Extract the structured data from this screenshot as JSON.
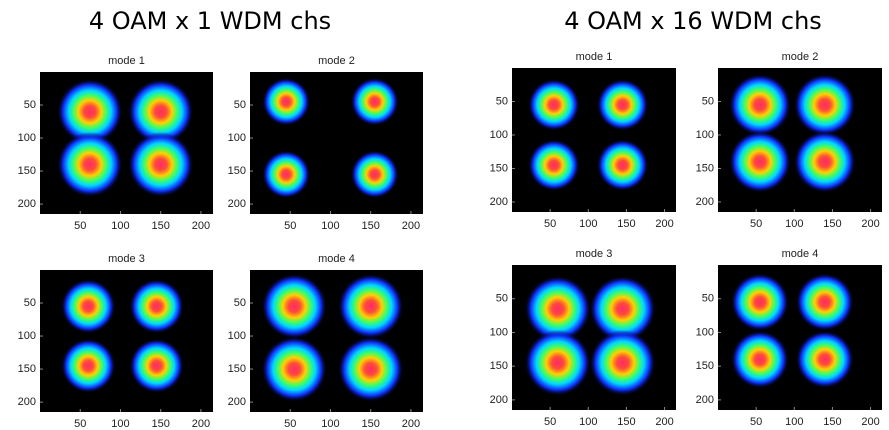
{
  "titles": [
    "4 OAM x 1 WDM chs",
    "4 OAM x 16 WDM chs"
  ],
  "chart_data": [
    {
      "type": "heatmap",
      "title": "mode 1",
      "x": [
        62,
        150,
        62,
        150
      ],
      "values": [
        60,
        60,
        140,
        140
      ],
      "sizes": [
        30,
        30,
        30,
        30
      ],
      "xlim": [
        0,
        215
      ],
      "ylim": [
        215,
        0
      ],
      "xticks": [
        50,
        100,
        150,
        200
      ],
      "yticks": [
        50,
        100,
        150,
        200
      ]
    },
    {
      "type": "heatmap",
      "title": "mode 2",
      "x": [
        45,
        155,
        45,
        155
      ],
      "values": [
        45,
        45,
        155,
        155
      ],
      "sizes": [
        22,
        22,
        22,
        22
      ],
      "xlim": [
        0,
        215
      ],
      "ylim": [
        215,
        0
      ],
      "xticks": [
        50,
        100,
        150,
        200
      ],
      "yticks": [
        50,
        100,
        150,
        200
      ]
    },
    {
      "type": "heatmap",
      "title": "mode 3",
      "x": [
        60,
        145,
        60,
        145
      ],
      "values": [
        55,
        55,
        145,
        145
      ],
      "sizes": [
        25,
        25,
        25,
        25
      ],
      "xlim": [
        0,
        215
      ],
      "ylim": [
        215,
        0
      ],
      "xticks": [
        50,
        100,
        150,
        200
      ],
      "yticks": [
        50,
        100,
        150,
        200
      ]
    },
    {
      "type": "heatmap",
      "title": "mode 4",
      "x": [
        55,
        150,
        55,
        150
      ],
      "values": [
        55,
        55,
        150,
        150
      ],
      "sizes": [
        30,
        30,
        30,
        30
      ],
      "xlim": [
        0,
        215
      ],
      "ylim": [
        215,
        0
      ],
      "xticks": [
        50,
        100,
        150,
        200
      ],
      "yticks": [
        50,
        100,
        150,
        200
      ]
    },
    {
      "type": "heatmap",
      "title": "mode 1",
      "x": [
        55,
        145,
        55,
        145
      ],
      "values": [
        55,
        55,
        145,
        145
      ],
      "sizes": [
        25,
        25,
        25,
        25
      ],
      "xlim": [
        0,
        215
      ],
      "ylim": [
        215,
        0
      ],
      "xticks": [
        50,
        100,
        150,
        200
      ],
      "yticks": [
        50,
        100,
        150,
        200
      ]
    },
    {
      "type": "heatmap",
      "title": "mode 2",
      "x": [
        55,
        140,
        55,
        140
      ],
      "values": [
        55,
        55,
        140,
        140
      ],
      "sizes": [
        30,
        30,
        30,
        30
      ],
      "xlim": [
        0,
        215
      ],
      "ylim": [
        215,
        0
      ],
      "xticks": [
        50,
        100,
        150,
        200
      ],
      "yticks": [
        50,
        100,
        150,
        200
      ]
    },
    {
      "type": "heatmap",
      "title": "mode 3",
      "x": [
        60,
        145,
        60,
        145
      ],
      "values": [
        65,
        65,
        145,
        145
      ],
      "sizes": [
        32,
        32,
        32,
        32
      ],
      "xlim": [
        0,
        215
      ],
      "ylim": [
        215,
        0
      ],
      "xticks": [
        50,
        100,
        150,
        200
      ],
      "yticks": [
        50,
        100,
        150,
        200
      ]
    },
    {
      "type": "heatmap",
      "title": "mode 4",
      "x": [
        55,
        140,
        55,
        140
      ],
      "values": [
        55,
        55,
        140,
        140
      ],
      "sizes": [
        28,
        28,
        28,
        28
      ],
      "xlim": [
        0,
        215
      ],
      "ylim": [
        215,
        0
      ],
      "xticks": [
        50,
        100,
        150,
        200
      ],
      "yticks": [
        50,
        100,
        150,
        200
      ]
    }
  ]
}
